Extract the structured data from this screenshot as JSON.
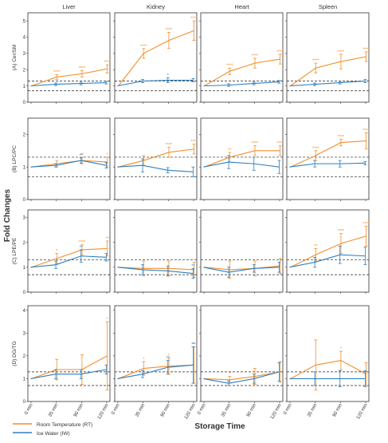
{
  "colors": {
    "rt": "#f28e2b",
    "iw": "#2f7fbf",
    "axis": "#333333",
    "ref": "#222222"
  },
  "chart_data": {
    "type": "line",
    "xlabel": "Storage Time",
    "ylabel": "Fold Changes",
    "x_ticks": [
      "0 min",
      "35 min",
      "90 min",
      "120 min"
    ],
    "columns": [
      "Liver",
      "Kidney",
      "Heart",
      "Spleen"
    ],
    "reference_lines": [
      0.7,
      1.3
    ],
    "legend": {
      "placement": "bottom-center",
      "entries": [
        "Room Temperature (RT)",
        "Ice Water (IW)"
      ]
    },
    "rows": [
      {
        "label": "(A) Cer/SM",
        "ylim": [
          0,
          5.5
        ],
        "yticks": [
          "0",
          "1",
          "2",
          "3",
          "4",
          "5"
        ],
        "ytick_values": [
          0,
          1,
          2,
          3,
          4,
          5
        ]
      },
      {
        "label": "(B) LPC/PC",
        "ylim": [
          0,
          2.5
        ],
        "yticks": [
          "0",
          "1",
          "2"
        ],
        "ytick_values": [
          0,
          1,
          2
        ]
      },
      {
        "label": "(C) LPE/PE",
        "ylim": [
          0,
          3.3
        ],
        "yticks": [
          "0",
          "1",
          "2",
          "3"
        ],
        "ytick_values": [
          0,
          1,
          2,
          3
        ]
      },
      {
        "label": "(D) DG/TG",
        "ylim": [
          0,
          4.2
        ],
        "yticks": [
          "0",
          "1",
          "2",
          "3",
          "4"
        ],
        "ytick_values": [
          0,
          1,
          2,
          3,
          4
        ]
      }
    ],
    "panels": [
      {
        "row": 0,
        "col": 0,
        "series": [
          {
            "name": "Room Temperature (RT)",
            "values": [
              1.0,
              1.55,
              1.75,
              2.05
            ],
            "errors": [
              0,
              0.15,
              0.2,
              0.25
            ],
            "sig": [
              "",
              "****",
              "****",
              "****"
            ]
          },
          {
            "name": "Ice Water (IW)",
            "values": [
              1.0,
              1.1,
              1.15,
              1.2
            ],
            "errors": [
              0,
              0.08,
              0.08,
              0.08
            ],
            "sig": [
              "",
              "",
              "",
              ""
            ]
          }
        ]
      },
      {
        "row": 0,
        "col": 1,
        "series": [
          {
            "name": "Room Temperature (RT)",
            "values": [
              1.0,
              3.0,
              3.8,
              4.4
            ],
            "errors": [
              0,
              0.3,
              0.5,
              0.6
            ],
            "sig": [
              "",
              "****",
              "****",
              "****"
            ]
          },
          {
            "name": "Ice Water (IW)",
            "values": [
              1.0,
              1.3,
              1.35,
              1.35
            ],
            "errors": [
              0,
              0.1,
              0.15,
              0.1
            ],
            "sig": [
              "",
              "",
              "*",
              ""
            ]
          }
        ]
      },
      {
        "row": 0,
        "col": 2,
        "series": [
          {
            "name": "Room Temperature (RT)",
            "values": [
              1.0,
              1.9,
              2.4,
              2.65
            ],
            "errors": [
              0,
              0.2,
              0.3,
              0.3
            ],
            "sig": [
              "",
              "****",
              "****",
              "****"
            ]
          },
          {
            "name": "Ice Water (IW)",
            "values": [
              1.0,
              1.05,
              1.15,
              1.25
            ],
            "errors": [
              0,
              0.08,
              0.08,
              0.08
            ],
            "sig": [
              "",
              "",
              "",
              ""
            ]
          }
        ]
      },
      {
        "row": 0,
        "col": 3,
        "series": [
          {
            "name": "Room Temperature (RT)",
            "values": [
              1.0,
              2.1,
              2.5,
              2.8
            ],
            "errors": [
              0,
              0.3,
              0.45,
              0.3
            ],
            "sig": [
              "",
              "****",
              "****",
              "****"
            ]
          },
          {
            "name": "Ice Water (IW)",
            "values": [
              1.0,
              1.1,
              1.2,
              1.3
            ],
            "errors": [
              0,
              0.08,
              0.08,
              0.1
            ],
            "sig": [
              "",
              "",
              "",
              ""
            ]
          }
        ]
      },
      {
        "row": 1,
        "col": 0,
        "series": [
          {
            "name": "Room Temperature (RT)",
            "values": [
              1.0,
              1.1,
              1.2,
              1.15
            ],
            "errors": [
              0,
              0.1,
              0.1,
              0.15
            ],
            "sig": [
              "",
              "",
              "**",
              "*"
            ]
          },
          {
            "name": "Ice Water (IW)",
            "values": [
              1.0,
              1.05,
              1.2,
              1.05
            ],
            "errors": [
              0,
              0.05,
              0.08,
              0.08
            ],
            "sig": [
              "",
              "",
              "**",
              ""
            ]
          }
        ]
      },
      {
        "row": 1,
        "col": 1,
        "series": [
          {
            "name": "Room Temperature (RT)",
            "values": [
              1.0,
              1.2,
              1.45,
              1.55
            ],
            "errors": [
              0,
              0.15,
              0.15,
              0.15
            ],
            "sig": [
              "",
              "",
              "****",
              "****"
            ]
          },
          {
            "name": "Ice Water (IW)",
            "values": [
              1.0,
              1.05,
              0.9,
              0.85
            ],
            "errors": [
              0,
              0.2,
              0.08,
              0.15
            ],
            "sig": [
              "",
              "",
              "",
              ""
            ]
          }
        ]
      },
      {
        "row": 1,
        "col": 2,
        "series": [
          {
            "name": "Room Temperature (RT)",
            "values": [
              1.0,
              1.3,
              1.5,
              1.5
            ],
            "errors": [
              0,
              0.15,
              0.15,
              0.15
            ],
            "sig": [
              "",
              "**",
              "****",
              "****"
            ]
          },
          {
            "name": "Ice Water (IW)",
            "values": [
              1.0,
              1.15,
              1.1,
              1.0
            ],
            "errors": [
              0,
              0.2,
              0.2,
              0.2
            ],
            "sig": [
              "",
              "",
              "",
              ""
            ]
          }
        ]
      },
      {
        "row": 1,
        "col": 3,
        "series": [
          {
            "name": "Room Temperature (RT)",
            "values": [
              1.0,
              1.35,
              1.75,
              1.8
            ],
            "errors": [
              0,
              0.15,
              0.1,
              0.25
            ],
            "sig": [
              "",
              "****",
              "****",
              "****"
            ]
          },
          {
            "name": "Ice Water (IW)",
            "values": [
              1.0,
              1.1,
              1.1,
              1.12
            ],
            "errors": [
              0,
              0.1,
              0.1,
              0.05
            ],
            "sig": [
              "",
              "",
              "",
              ""
            ]
          }
        ]
      },
      {
        "row": 2,
        "col": 0,
        "series": [
          {
            "name": "Room Temperature (RT)",
            "values": [
              1.0,
              1.35,
              1.7,
              1.75
            ],
            "errors": [
              0,
              0.2,
              0.2,
              0.3
            ],
            "sig": [
              "",
              "*",
              "****",
              "**"
            ]
          },
          {
            "name": "Ice Water (IW)",
            "values": [
              1.0,
              1.1,
              1.45,
              1.4
            ],
            "errors": [
              0,
              0.15,
              0.25,
              0.15
            ],
            "sig": [
              "",
              "",
              "**",
              ""
            ]
          }
        ]
      },
      {
        "row": 2,
        "col": 1,
        "series": [
          {
            "name": "Room Temperature (RT)",
            "values": [
              1.0,
              0.95,
              0.95,
              0.9
            ],
            "errors": [
              0,
              0.3,
              0.3,
              0.3
            ],
            "sig": [
              "",
              "",
              "",
              ""
            ]
          },
          {
            "name": "Ice Water (IW)",
            "values": [
              1.0,
              0.9,
              0.85,
              0.75
            ],
            "errors": [
              0,
              0.2,
              0.2,
              0.2
            ],
            "sig": [
              "",
              "",
              "",
              "**"
            ]
          }
        ]
      },
      {
        "row": 2,
        "col": 2,
        "series": [
          {
            "name": "Room Temperature (RT)",
            "values": [
              1.0,
              0.9,
              0.95,
              1.05
            ],
            "errors": [
              0,
              0.35,
              0.3,
              0.3
            ],
            "sig": [
              "",
              "",
              "",
              ""
            ]
          },
          {
            "name": "Ice Water (IW)",
            "values": [
              1.0,
              0.8,
              0.95,
              1.0
            ],
            "errors": [
              0,
              0.2,
              0.15,
              0.2
            ],
            "sig": [
              "",
              "",
              "",
              ""
            ]
          }
        ]
      },
      {
        "row": 2,
        "col": 3,
        "series": [
          {
            "name": "Room Temperature (RT)",
            "values": [
              1.0,
              1.5,
              1.95,
              2.25
            ],
            "errors": [
              0,
              0.25,
              0.4,
              0.4
            ],
            "sig": [
              "",
              "**",
              "****",
              "****"
            ]
          },
          {
            "name": "Ice Water (IW)",
            "values": [
              1.0,
              1.2,
              1.5,
              1.45
            ],
            "errors": [
              0,
              0.2,
              0.35,
              0.35
            ],
            "sig": [
              "",
              "",
              "",
              ""
            ]
          }
        ]
      },
      {
        "row": 3,
        "col": 0,
        "series": [
          {
            "name": "Room Temperature (RT)",
            "values": [
              1.0,
              1.4,
              1.4,
              2.0
            ],
            "errors": [
              0,
              0.45,
              0.65,
              1.5
            ],
            "sig": [
              "",
              "",
              "",
              "*"
            ]
          },
          {
            "name": "Ice Water (IW)",
            "values": [
              1.0,
              1.2,
              1.2,
              1.4
            ],
            "errors": [
              0,
              0.2,
              0.2,
              0.2
            ],
            "sig": [
              "",
              "",
              "",
              ""
            ]
          }
        ]
      },
      {
        "row": 3,
        "col": 1,
        "series": [
          {
            "name": "Room Temperature (RT)",
            "values": [
              1.0,
              1.45,
              1.55,
              1.6
            ],
            "errors": [
              0,
              0.3,
              0.35,
              0.8
            ],
            "sig": [
              "",
              "*",
              "*",
              "**"
            ]
          },
          {
            "name": "Ice Water (IW)",
            "values": [
              1.0,
              1.2,
              1.5,
              1.6
            ],
            "errors": [
              0,
              0.15,
              0.3,
              0.8
            ],
            "sig": [
              "",
              "",
              "**",
              "**"
            ]
          }
        ]
      },
      {
        "row": 3,
        "col": 2,
        "series": [
          {
            "name": "Room Temperature (RT)",
            "values": [
              1.0,
              0.95,
              1.1,
              1.3
            ],
            "errors": [
              0,
              0.15,
              0.35,
              0.45
            ],
            "sig": [
              "",
              "*",
              "",
              ""
            ]
          },
          {
            "name": "Ice Water (IW)",
            "values": [
              1.0,
              0.8,
              1.0,
              1.3
            ],
            "errors": [
              0,
              0.1,
              0.2,
              0.4
            ],
            "sig": [
              "",
              "",
              "",
              ""
            ]
          }
        ]
      },
      {
        "row": 3,
        "col": 3,
        "series": [
          {
            "name": "Room Temperature (RT)",
            "values": [
              1.0,
              1.6,
              1.8,
              1.2
            ],
            "errors": [
              0,
              1.1,
              0.4,
              0.5
            ],
            "sig": [
              "",
              "",
              "*",
              ""
            ]
          },
          {
            "name": "Ice Water (IW)",
            "values": [
              1.0,
              1.0,
              1.0,
              1.0
            ],
            "errors": [
              0,
              0.3,
              0.35,
              0.35
            ],
            "sig": [
              "",
              "",
              "",
              ""
            ]
          }
        ]
      }
    ]
  }
}
